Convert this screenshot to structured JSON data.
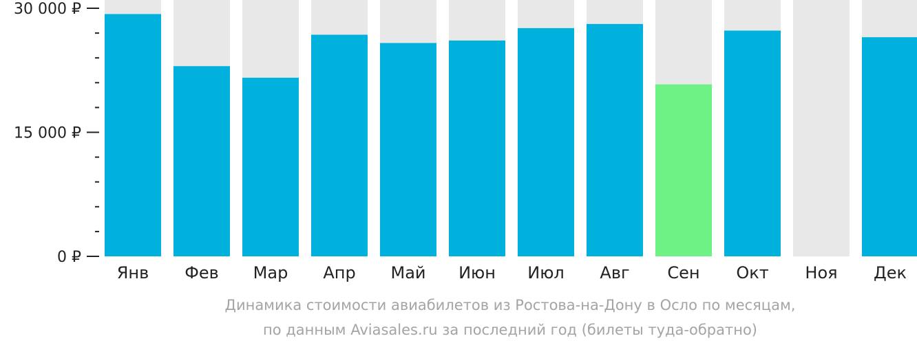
{
  "chart_data": {
    "type": "bar",
    "categories": [
      "Янв",
      "Фев",
      "Мар",
      "Апр",
      "Май",
      "Июн",
      "Июл",
      "Авг",
      "Сен",
      "Окт",
      "Ноя",
      "Дек"
    ],
    "values": [
      29300,
      23000,
      21600,
      26800,
      25800,
      26100,
      27600,
      28100,
      20800,
      27300,
      null,
      26500
    ],
    "ylim": [
      0,
      31000
    ],
    "y_ticks": [
      {
        "value": 0,
        "label": "0 ₽"
      },
      {
        "value": 15000,
        "label": "15 000 ₽"
      },
      {
        "value": 30000,
        "label": "30 000 ₽"
      }
    ],
    "y_minor_step": 3000,
    "highlight_index": 8,
    "colors": {
      "bar": "#00b1dd",
      "highlight": "#6ef286",
      "background": "#e8e8e8",
      "axis": "#222222"
    },
    "caption": {
      "line1": "Динамика стоимости авиабилетов из Ростова-на-Дону в Осло по месяцам,",
      "line2": "по данным Aviasales.ru за последний год (билеты туда-обратно)"
    }
  }
}
